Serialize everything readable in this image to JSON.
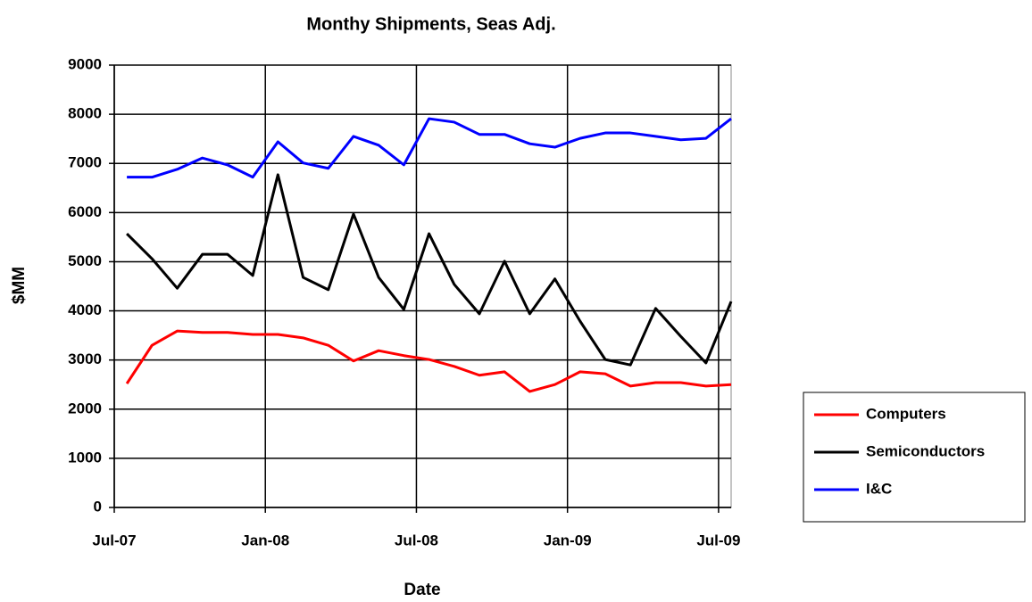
{
  "chart_data": {
    "type": "line",
    "title": "Monthy Shipments, Seas Adj.",
    "xlabel": "Date",
    "ylabel": "$MM",
    "x": [
      0.5,
      1.5,
      2.5,
      3.5,
      4.5,
      5.5,
      6.5,
      7.5,
      8.5,
      9.5,
      10.5,
      11.5,
      12.5,
      13.5,
      14.5,
      15.5,
      16.5,
      17.5,
      18.5,
      19.5,
      20.5,
      21.5,
      22.5,
      23.5,
      24.5
    ],
    "xlim": [
      0,
      24.5
    ],
    "xticks": [
      {
        "value": 0,
        "label": "Jul-07"
      },
      {
        "value": 6,
        "label": "Jan-08"
      },
      {
        "value": 12,
        "label": "Jul-08"
      },
      {
        "value": 18,
        "label": "Jan-09"
      },
      {
        "value": 24,
        "label": "Jul-09"
      }
    ],
    "ylim": [
      0,
      9000
    ],
    "yticks": [
      0,
      1000,
      2000,
      3000,
      4000,
      5000,
      6000,
      7000,
      8000,
      9000
    ],
    "grid": true,
    "legend": "right",
    "series": [
      {
        "name": "Computers",
        "color": "#ff0000",
        "values": [
          2520,
          3300,
          3590,
          3560,
          3560,
          3520,
          3520,
          3450,
          3300,
          2980,
          3190,
          3090,
          3010,
          2870,
          2690,
          2760,
          2360,
          2500,
          2760,
          2720,
          2470,
          2540,
          2540,
          2470,
          2500
        ]
      },
      {
        "name": "Semiconductors",
        "color": "#000000",
        "values": [
          5570,
          5060,
          4460,
          5150,
          5150,
          4720,
          6770,
          4680,
          4430,
          5970,
          4680,
          4030,
          5570,
          4540,
          3940,
          5010,
          3940,
          4650,
          3790,
          3010,
          2900,
          4050,
          3480,
          2940,
          4190
        ]
      },
      {
        "name": "I&C",
        "color": "#0000ff",
        "values": [
          6720,
          6720,
          6880,
          7110,
          6970,
          6720,
          7440,
          7010,
          6900,
          7550,
          7370,
          6970,
          7910,
          7840,
          7590,
          7590,
          7400,
          7330,
          7510,
          7620,
          7620,
          7550,
          7480,
          7510,
          7910
        ]
      }
    ]
  }
}
